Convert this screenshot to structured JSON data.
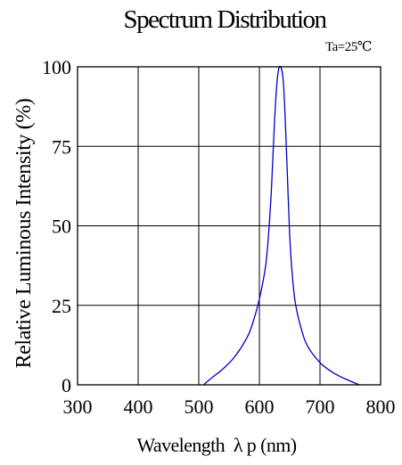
{
  "chart_data": {
    "type": "line",
    "title": "Spectrum Distribution",
    "condition": "Ta=25℃",
    "xlabel": "Wavelength  λ p (nm)",
    "ylabel": "Relative Luminous Intensity (%)",
    "xlim": [
      300,
      800
    ],
    "ylim": [
      0,
      100
    ],
    "xticks": [
      "300",
      "400",
      "500",
      "600",
      "700",
      "800"
    ],
    "yticks": [
      "0",
      "25",
      "50",
      "75",
      "100"
    ],
    "grid": true,
    "series": [
      {
        "color": "#0000cc",
        "x": [
          508,
          520,
          540,
          560,
          580,
          590,
          600,
          610,
          615,
          620,
          625,
          630,
          635,
          640,
          645,
          650,
          655,
          660,
          670,
          680,
          700,
          720,
          740,
          765
        ],
        "y": [
          0,
          2,
          5,
          9,
          15,
          20,
          27,
          37,
          47,
          62,
          83,
          97,
          100,
          94,
          72,
          47,
          33,
          25,
          17,
          12,
          7,
          4,
          2,
          0
        ]
      }
    ]
  }
}
